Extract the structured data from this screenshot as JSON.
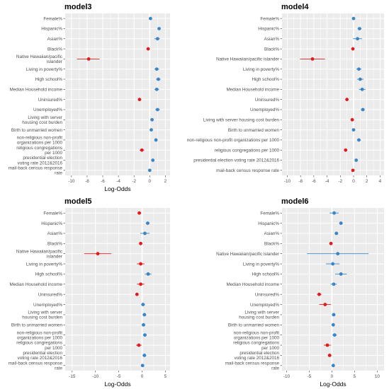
{
  "colors": {
    "positive": "#3a85c6",
    "negative": "#e31a1c",
    "panel_bg": "#ebebeb",
    "grid": "#ffffff",
    "zero_line": "#ffffff"
  },
  "chart_data": [
    {
      "type": "scatter",
      "title": "model3",
      "xlabel": "Log-Odds",
      "xlim": [
        -10.8,
        2.6
      ],
      "xticks": [
        -10,
        -8,
        -6,
        -4,
        -2,
        0,
        2
      ],
      "categories": [
        [
          "Female%"
        ],
        [
          "Hispanic%"
        ],
        [
          "Asian%"
        ],
        [
          "Black%"
        ],
        [
          "Native Hawaiian/pacific",
          "islander"
        ],
        [
          "Living in poverty%"
        ],
        [
          "High school%"
        ],
        [
          "Median Household income"
        ],
        [
          "Uninsured%"
        ],
        [
          "Unemployed%"
        ],
        [
          "Living with server",
          "housing cost burden"
        ],
        [
          "Birth to unmarried women"
        ],
        [
          "non-religious non-profit",
          "organizations per 1000"
        ],
        [
          "religious congregations",
          "per 1000"
        ],
        [
          "presidential election",
          "voting rate 2012&2016"
        ],
        [
          "mail-back census response",
          "rate"
        ]
      ],
      "estimates": [
        0.1,
        1.2,
        1.0,
        -0.2,
        -7.8,
        0.9,
        1.1,
        0.9,
        -1.3,
        1.0,
        0.3,
        0.2,
        0.8,
        -1.0,
        0.4,
        0.0
      ],
      "lower": [
        0.0,
        1.0,
        0.6,
        -0.35,
        -9.3,
        0.6,
        0.8,
        0.6,
        -1.45,
        0.7,
        0.1,
        0.05,
        0.6,
        -1.3,
        0.25,
        -0.1
      ],
      "upper": [
        0.2,
        1.4,
        1.3,
        -0.05,
        -6.4,
        1.2,
        1.4,
        1.2,
        -1.15,
        1.3,
        0.5,
        0.35,
        1.0,
        -0.7,
        0.55,
        0.1
      ]
    },
    {
      "type": "scatter",
      "title": "model4",
      "xlabel": "",
      "xlim": [
        -10.8,
        4.6
      ],
      "xticks": [
        -10,
        -8,
        -6,
        -4,
        -2,
        0,
        2,
        4
      ],
      "categories": [
        [
          "Female%"
        ],
        [
          "Hispanic%"
        ],
        [
          "Asian%"
        ],
        [
          "Black%"
        ],
        [
          "Native Hawaiian/pacific islander"
        ],
        [
          "Living in poverty%"
        ],
        [
          "High school%"
        ],
        [
          "Median Household income"
        ],
        [
          "Uninsured%"
        ],
        [
          "Unemployed%"
        ],
        [
          "Living with server housing cost burden"
        ],
        [
          "Birth to unmarried women"
        ],
        [
          "non-religious non-profit organizations per 1000"
        ],
        [
          "religious congregations per 1000"
        ],
        [
          "presidential election voting rate 2012&2016"
        ],
        [
          "mail-back census response rate"
        ]
      ],
      "estimates": [
        0.0,
        0.9,
        0.6,
        -0.1,
        -6.2,
        0.8,
        1.0,
        1.3,
        -1.0,
        1.4,
        -0.2,
        0.0,
        0.8,
        -1.2,
        0.4,
        -0.1
      ],
      "lower": [
        -0.1,
        0.6,
        -0.1,
        -0.3,
        -8.1,
        0.4,
        0.5,
        0.8,
        -1.15,
        1.1,
        -0.4,
        -0.15,
        0.5,
        -1.4,
        0.2,
        -0.2
      ],
      "upper": [
        0.1,
        1.2,
        1.3,
        0.1,
        -4.3,
        1.2,
        1.5,
        1.8,
        -0.85,
        1.7,
        0.0,
        0.15,
        1.1,
        -1.0,
        0.6,
        0.0
      ]
    },
    {
      "type": "scatter",
      "title": "model5",
      "xlabel": "Log-Odds",
      "xlim": [
        -16.5,
        6.0
      ],
      "xticks": [
        -15,
        -10,
        -5,
        0,
        5
      ],
      "categories": [
        [
          "Female%"
        ],
        [
          "Hispanic%"
        ],
        [
          "Asian%"
        ],
        [
          "Black%"
        ],
        [
          "Native Hawaiian/pacific",
          "islander"
        ],
        [
          "Living in poverty%"
        ],
        [
          "High school%"
        ],
        [
          "Median Household income"
        ],
        [
          "Uninsured%"
        ],
        [
          "Unemployed%"
        ],
        [
          "Living with server",
          "housing cost burden"
        ],
        [
          "Birth to unmarried women"
        ],
        [
          "non-religious non-profit",
          "organizations per 1000"
        ],
        [
          "religious congregations",
          "per 1000"
        ],
        [
          "presidential election",
          "voting rate 2012&2016"
        ],
        [
          "mail-back census response",
          "rate"
        ]
      ],
      "estimates": [
        -0.6,
        1.2,
        0.6,
        -0.3,
        -9.5,
        -0.3,
        1.3,
        -0.3,
        -1.1,
        0.2,
        0.5,
        0.3,
        0.6,
        -0.7,
        0.5,
        0.1
      ],
      "lower": [
        -1.0,
        0.8,
        -0.4,
        -0.5,
        -12.4,
        -1.1,
        0.6,
        -1.1,
        -1.4,
        -0.2,
        0.1,
        -0.1,
        0.2,
        -1.3,
        0.1,
        -0.2
      ],
      "upper": [
        -0.2,
        1.6,
        1.6,
        -0.1,
        -6.6,
        0.5,
        2.0,
        0.5,
        -0.8,
        0.6,
        0.9,
        0.7,
        1.0,
        -0.1,
        0.9,
        0.4
      ]
    },
    {
      "type": "scatter",
      "title": "model6",
      "xlabel": "Log-Odds",
      "xlim": [
        -11.0,
        11.5
      ],
      "xticks": [
        -10,
        -5,
        0,
        5,
        10
      ],
      "categories": [
        [
          "Female%"
        ],
        [
          "Hispanic%"
        ],
        [
          "Asian%"
        ],
        [
          "Black%"
        ],
        [
          "Native Hawaiian/pacific islander"
        ],
        [
          "Living in poverty%"
        ],
        [
          "High school%"
        ],
        [
          "Median Household income"
        ],
        [
          "Uninsured%"
        ],
        [
          "Unemployed%"
        ],
        [
          "Living with server",
          "housing cost burden"
        ],
        [
          "Birth to unmarried women"
        ],
        [
          "non-religious non-profit",
          "organizations per 1000"
        ],
        [
          "religious congregations",
          "per 1000"
        ],
        [
          "presidential election",
          "voting rate 2012&2016"
        ],
        [
          "mail-back census response",
          "rate"
        ]
      ],
      "estimates": [
        0.5,
        2.0,
        1.0,
        -0.2,
        1.3,
        0.2,
        2.0,
        0.4,
        -2.8,
        -1.5,
        0.4,
        0.3,
        0.6,
        -1.0,
        -0.5,
        0.3
      ],
      "lower": [
        -0.5,
        1.6,
        0.6,
        -0.5,
        -5.5,
        -1.3,
        0.7,
        -0.3,
        -3.3,
        -2.8,
        0.0,
        0.0,
        0.1,
        -1.8,
        -0.9,
        0.0
      ],
      "upper": [
        1.5,
        2.4,
        1.4,
        0.1,
        8.1,
        1.7,
        3.3,
        1.1,
        -2.3,
        -0.2,
        0.8,
        0.6,
        1.1,
        -0.2,
        -0.1,
        0.6
      ]
    }
  ]
}
